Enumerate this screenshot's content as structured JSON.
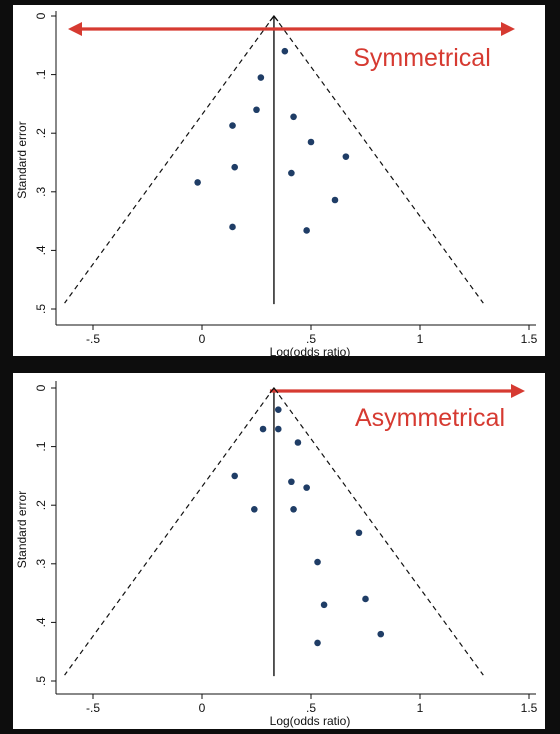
{
  "colors": {
    "background": "#0d0d0d",
    "plot_background": "#ffffff",
    "point": "#1f3d66",
    "arrow": "#d63a31",
    "axis": "#111111"
  },
  "chart_data": [
    {
      "type": "scatter",
      "subtype": "funnel",
      "title": "",
      "xlabel": "Log(odds ratio)",
      "ylabel": "Standard error",
      "xlim": [
        -0.7,
        1.5
      ],
      "ylim": [
        0,
        0.5
      ],
      "y_reversed": true,
      "x_ticks": [
        -0.5,
        0,
        0.5,
        1,
        1.5
      ],
      "x_tick_labels": [
        "-.5",
        "0",
        ".5",
        "1",
        "1.5"
      ],
      "y_ticks": [
        0,
        0.1,
        0.2,
        0.3,
        0.4,
        0.5
      ],
      "y_tick_labels": [
        "0",
        ".1",
        ".2",
        ".3",
        ".4",
        ".5"
      ],
      "grid": false,
      "pooled_estimate": 0.33,
      "funnel_limit_se": 0.49,
      "annotation": {
        "text": "Symmetrical",
        "arrow": "double-headed",
        "position": "top"
      },
      "points": [
        {
          "x": 0.38,
          "y": 0.06
        },
        {
          "x": 0.27,
          "y": 0.105
        },
        {
          "x": 0.25,
          "y": 0.16
        },
        {
          "x": 0.42,
          "y": 0.172
        },
        {
          "x": 0.14,
          "y": 0.187
        },
        {
          "x": 0.5,
          "y": 0.215
        },
        {
          "x": 0.66,
          "y": 0.24
        },
        {
          "x": 0.15,
          "y": 0.258
        },
        {
          "x": 0.41,
          "y": 0.268
        },
        {
          "x": -0.02,
          "y": 0.284
        },
        {
          "x": 0.61,
          "y": 0.314
        },
        {
          "x": 0.14,
          "y": 0.36
        },
        {
          "x": 0.48,
          "y": 0.366
        }
      ]
    },
    {
      "type": "scatter",
      "subtype": "funnel",
      "title": "",
      "xlabel": "Log(odds ratio)",
      "ylabel": "Standard error",
      "xlim": [
        -0.7,
        1.5
      ],
      "ylim": [
        0,
        0.5
      ],
      "y_reversed": true,
      "x_ticks": [
        -0.5,
        0,
        0.5,
        1,
        1.5
      ],
      "x_tick_labels": [
        "-.5",
        "0",
        ".5",
        "1",
        "1.5"
      ],
      "y_ticks": [
        0,
        0.1,
        0.2,
        0.3,
        0.4,
        0.5
      ],
      "y_tick_labels": [
        "0",
        ".1",
        ".2",
        ".3",
        ".4",
        ".5"
      ],
      "grid": false,
      "pooled_estimate": 0.33,
      "funnel_limit_se": 0.49,
      "annotation": {
        "text": "Asymmetrical",
        "arrow": "right",
        "position": "top"
      },
      "points": [
        {
          "x": 0.35,
          "y": 0.037
        },
        {
          "x": 0.28,
          "y": 0.07
        },
        {
          "x": 0.35,
          "y": 0.07
        },
        {
          "x": 0.44,
          "y": 0.093
        },
        {
          "x": 0.15,
          "y": 0.15
        },
        {
          "x": 0.41,
          "y": 0.16
        },
        {
          "x": 0.48,
          "y": 0.17
        },
        {
          "x": 0.24,
          "y": 0.207
        },
        {
          "x": 0.42,
          "y": 0.207
        },
        {
          "x": 0.72,
          "y": 0.247
        },
        {
          "x": 0.53,
          "y": 0.297
        },
        {
          "x": 0.75,
          "y": 0.36
        },
        {
          "x": 0.56,
          "y": 0.37
        },
        {
          "x": 0.82,
          "y": 0.42
        },
        {
          "x": 0.53,
          "y": 0.435
        }
      ]
    }
  ]
}
